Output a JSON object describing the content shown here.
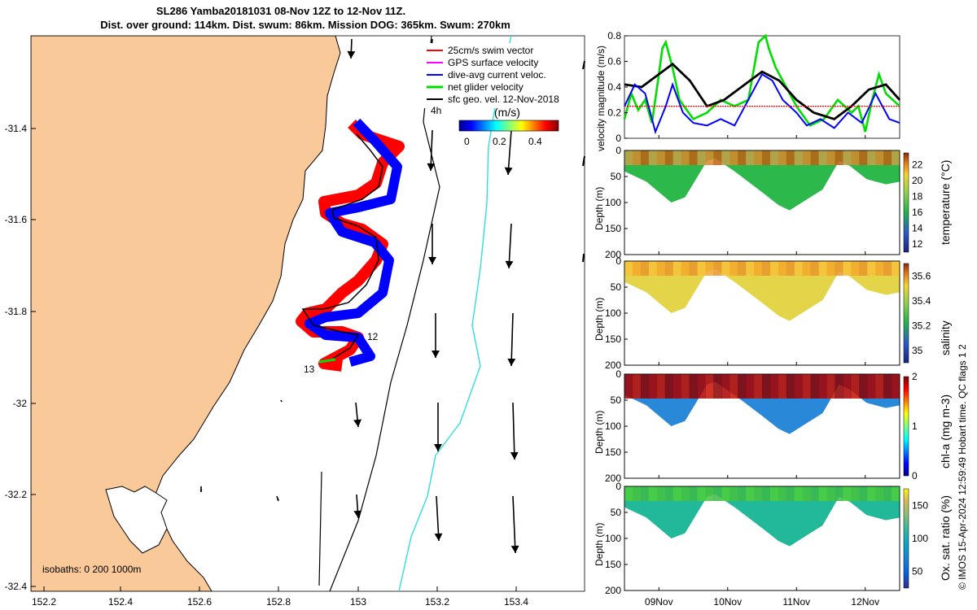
{
  "header": {
    "title": "SL286 Yamba20181031 08-Nov 12Z to 12-Nov 11Z.",
    "subtitle": "Dist. over ground: 114km. Dist. swum: 86km. Mission DOG: 365km. Swum: 270km"
  },
  "colors": {
    "land": "#f9c99a",
    "swim": "#ff0000",
    "gps": "#ff00ff",
    "dive_avg": "#0000ff",
    "net": "#00dd00",
    "sfc": "#000000",
    "isobath_200": "#000000",
    "isobath_1000": "#33dddd"
  },
  "map": {
    "legend": [
      {
        "key": "swim",
        "label": "25cm/s swim vector"
      },
      {
        "key": "gps",
        "label": "GPS surface velocity"
      },
      {
        "key": "dive_avg",
        "label": "dive-avg current veloc."
      },
      {
        "key": "net",
        "label": "net glider velocity"
      },
      {
        "key": "sfc",
        "label": "sfc geo. vel. 12-Nov-2018"
      }
    ],
    "colorbar": {
      "title": "(m/s)",
      "ticks": [
        "0",
        "0.2",
        "0.4"
      ]
    },
    "scale_label": "4h",
    "isobaths_label": "isobaths: 0   200  1000m",
    "day_labels": [
      "12",
      "13"
    ],
    "lon_ticks": [
      "152.2",
      "152.4",
      "152.6",
      "152.8",
      "153",
      "153.2",
      "153.4"
    ],
    "lat_ticks": [
      "-31.4",
      "-31.6",
      "-31.8",
      "-32",
      "-32.2",
      "-32.4"
    ]
  },
  "chart_data": [
    {
      "type": "line",
      "ylabel": "velocity magnitude (m/s)",
      "ylim": [
        0,
        0.8
      ],
      "yticks": [
        "0",
        "0.2",
        "0.4",
        "0.6",
        "0.8"
      ],
      "x_days": [
        8.5,
        12.5
      ],
      "series": [
        {
          "key": "net",
          "color": "#00dd00",
          "x": [
            8.5,
            8.6,
            8.7,
            8.8,
            8.9,
            9.0,
            9.05,
            9.1,
            9.2,
            9.3,
            9.5,
            9.7,
            9.9,
            10.1,
            10.3,
            10.45,
            10.55,
            10.6,
            10.7,
            10.8,
            10.9,
            11.0,
            11.2,
            11.4,
            11.6,
            11.8,
            11.9,
            12.0,
            12.1,
            12.2,
            12.3,
            12.5
          ],
          "y": [
            0.15,
            0.35,
            0.22,
            0.3,
            0.12,
            0.5,
            0.7,
            0.75,
            0.55,
            0.3,
            0.15,
            0.2,
            0.3,
            0.25,
            0.3,
            0.75,
            0.8,
            0.7,
            0.55,
            0.45,
            0.35,
            0.25,
            0.1,
            0.15,
            0.3,
            0.2,
            0.25,
            0.05,
            0.3,
            0.5,
            0.35,
            0.25
          ]
        },
        {
          "key": "sfc",
          "color": "#000000",
          "x": [
            8.5,
            8.75,
            9.0,
            9.2,
            9.45,
            9.7,
            9.95,
            10.2,
            10.5,
            10.75,
            11.0,
            11.25,
            11.55,
            11.8,
            12.05,
            12.3,
            12.5
          ],
          "y": [
            0.42,
            0.4,
            0.5,
            0.58,
            0.45,
            0.25,
            0.3,
            0.4,
            0.52,
            0.45,
            0.3,
            0.2,
            0.15,
            0.25,
            0.38,
            0.42,
            0.3
          ]
        },
        {
          "key": "dive_avg",
          "color": "#0000ff",
          "x": [
            8.5,
            8.65,
            8.8,
            8.95,
            9.1,
            9.2,
            9.35,
            9.5,
            9.7,
            9.9,
            10.1,
            10.3,
            10.5,
            10.65,
            10.8,
            11.0,
            11.15,
            11.35,
            11.55,
            11.75,
            11.95,
            12.15,
            12.35,
            12.5
          ],
          "y": [
            0.25,
            0.42,
            0.35,
            0.05,
            0.25,
            0.42,
            0.2,
            0.12,
            0.1,
            0.15,
            0.1,
            0.3,
            0.5,
            0.45,
            0.3,
            0.2,
            0.1,
            0.15,
            0.08,
            0.2,
            0.12,
            0.35,
            0.15,
            0.12
          ]
        },
        {
          "key": "swim",
          "color": "#ff0000",
          "x": [
            8.5,
            12.5
          ],
          "y": [
            0.25,
            0.25
          ]
        }
      ]
    },
    {
      "type": "heatmap",
      "variable": "temperature",
      "ylabel": "Depth (m)",
      "yticks": [
        "0",
        "50",
        "100",
        "150",
        "200"
      ],
      "ylim": [
        200,
        0
      ],
      "colorbar_label": "temperature (°C)",
      "colorbar_ticks": [
        "12",
        "14",
        "16",
        "18",
        "20",
        "22"
      ],
      "range": [
        11,
        23.5
      ]
    },
    {
      "type": "heatmap",
      "variable": "salinity",
      "ylabel": "Depth (m)",
      "yticks": [
        "0",
        "50",
        "100",
        "150",
        "200"
      ],
      "ylim": [
        200,
        0
      ],
      "colorbar_label": "salinity",
      "colorbar_ticks": [
        "35",
        "35.2",
        "35.4",
        "35.6"
      ],
      "range": [
        34.9,
        35.7
      ]
    },
    {
      "type": "heatmap",
      "variable": "chl-a",
      "ylabel": "Depth (m)",
      "yticks": [
        "0",
        "50",
        "100",
        "150",
        "200"
      ],
      "ylim": [
        200,
        0
      ],
      "colorbar_label": "chl-a (mg m-3)",
      "colorbar_ticks": [
        "0",
        "1",
        "2"
      ],
      "range": [
        0,
        2
      ]
    },
    {
      "type": "heatmap",
      "variable": "oxygen",
      "ylabel": "Depth (m)",
      "yticks": [
        "0",
        "50",
        "100",
        "150",
        "200"
      ],
      "ylim": [
        200,
        0
      ],
      "colorbar_label": "Ox. sat. ratio (%)",
      "colorbar_ticks": [
        "50",
        "100",
        "150"
      ],
      "range": [
        25,
        175
      ]
    }
  ],
  "x_axis": {
    "ticks": [
      "09Nov",
      "10Nov",
      "11Nov",
      "12Nov"
    ]
  },
  "footer": "© IMOS 15-Apr-2024 12:59:49 Hobart time. QC flags 1  2"
}
